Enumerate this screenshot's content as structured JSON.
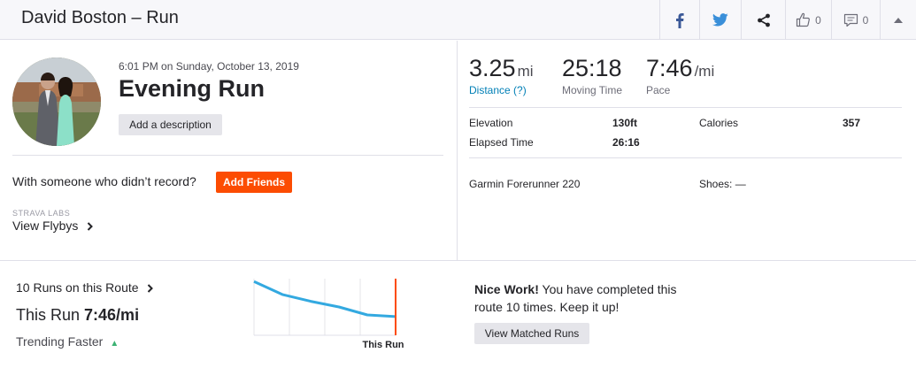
{
  "header": {
    "title": "David Boston – Run",
    "kudos_count": "0",
    "comments_count": "0"
  },
  "activity": {
    "datetime": "6:01 PM on Sunday, October 13, 2019",
    "name": "Evening Run",
    "add_description_label": "Add a description",
    "with_someone_text": "With someone who didn’t record?",
    "add_friends_label": "Add Friends",
    "strava_labs_label": "STRAVA LABS",
    "view_flybys_label": "View Flybys"
  },
  "stats": {
    "distance_value": "3.25",
    "distance_unit": "mi",
    "distance_label": "Distance (?)",
    "moving_time_value": "25:18",
    "moving_time_label": "Moving Time",
    "pace_value": "7:46",
    "pace_unit": "/mi",
    "pace_label": "Pace",
    "elevation_label": "Elevation",
    "elevation_value": "130ft",
    "calories_label": "Calories",
    "calories_value": "357",
    "elapsed_label": "Elapsed Time",
    "elapsed_value": "26:16",
    "device": "Garmin Forerunner 220",
    "shoes_label": "Shoes: —"
  },
  "route": {
    "runs_on_route": "10 Runs on this Route",
    "this_run_prefix": "This Run ",
    "this_run_pace": "7:46/mi",
    "trending": "Trending Faster",
    "chart_this_run_label": "This Run",
    "nice_work_bold": "Nice Work!",
    "nice_work_text": " You have completed this route 10 times. Keep it up!",
    "view_matched_label": "View Matched Runs"
  },
  "chart_data": {
    "type": "line",
    "values": [
      0.95,
      0.72,
      0.6,
      0.5,
      0.36,
      0.33
    ],
    "series_color": "#33a9e0",
    "marker_color": "#fc4c02"
  },
  "colors": {
    "brand_orange": "#fc4c02",
    "link_blue": "#007fb6",
    "facebook_blue": "#3b5998",
    "twitter_blue": "#1da1f2"
  }
}
